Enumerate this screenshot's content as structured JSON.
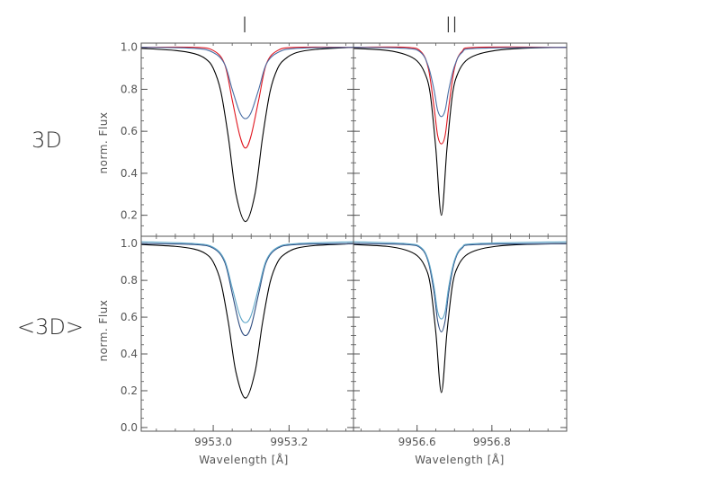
{
  "colors": {
    "black": "#000000",
    "red": "#e0161f",
    "blue": "#4a6fa5",
    "blue_dark": "#2f4d80",
    "blue_light": "#5fa6c8",
    "axis": "#555555"
  },
  "column_titles": [
    "I",
    "II"
  ],
  "row_titles": [
    "3D",
    "<3D>"
  ],
  "ylabel": "norm. Flux",
  "xlabel": "Wavelength [Å]",
  "chart_data": [
    {
      "type": "line",
      "panel": "top-left",
      "xlim": [
        9952.81,
        9953.37
      ],
      "ylim": [
        0.1,
        1.02
      ],
      "yticks": [
        0.2,
        0.4,
        0.6,
        0.8,
        1.0
      ],
      "ytick_labels": [
        "0.2",
        "0.4",
        "0.6",
        "0.8",
        "1.0"
      ],
      "xticks": [],
      "xtick_labels": [],
      "series": [
        {
          "color": "black",
          "center": 9953.085,
          "x": [
            9952.81,
            9952.9,
            9952.95,
            9952.98,
            9953.0,
            9953.02,
            9953.04,
            9953.06,
            9953.085,
            9953.11,
            9953.13,
            9953.15,
            9953.17,
            9953.19,
            9953.22,
            9953.27,
            9953.37
          ],
          "y": [
            0.995,
            0.985,
            0.97,
            0.945,
            0.9,
            0.79,
            0.57,
            0.3,
            0.17,
            0.3,
            0.57,
            0.79,
            0.9,
            0.945,
            0.975,
            0.99,
            1.0
          ]
        },
        {
          "color": "red",
          "center": 9953.085,
          "x": [
            9952.81,
            9952.95,
            9953.0,
            9953.03,
            9953.05,
            9953.07,
            9953.085,
            9953.1,
            9953.12,
            9953.14,
            9953.17,
            9953.22,
            9953.37
          ],
          "y": [
            1.0,
            1.0,
            0.985,
            0.92,
            0.75,
            0.58,
            0.52,
            0.58,
            0.75,
            0.92,
            0.985,
            1.0,
            1.0
          ]
        },
        {
          "color": "blue",
          "center": 9953.085,
          "x": [
            9952.81,
            9952.95,
            9953.0,
            9953.03,
            9953.05,
            9953.07,
            9953.085,
            9953.1,
            9953.12,
            9953.14,
            9953.17,
            9953.22,
            9953.37
          ],
          "y": [
            1.0,
            0.995,
            0.975,
            0.92,
            0.8,
            0.69,
            0.66,
            0.69,
            0.8,
            0.92,
            0.975,
            0.995,
            1.0
          ]
        }
      ]
    },
    {
      "type": "line",
      "panel": "top-right",
      "xlim": [
        9956.43,
        9957.0
      ],
      "ylim": [
        0.1,
        1.02
      ],
      "yticks": [
        0.2,
        0.4,
        0.6,
        0.8,
        1.0
      ],
      "ytick_labels": [],
      "xticks": [],
      "xtick_labels": [],
      "series": [
        {
          "color": "black",
          "center": 9956.665,
          "x": [
            9956.43,
            9956.52,
            9956.57,
            9956.6,
            9956.62,
            9956.635,
            9956.65,
            9956.665,
            9956.68,
            9956.695,
            9956.71,
            9956.73,
            9956.76,
            9956.81,
            9956.88,
            9957.0
          ],
          "y": [
            0.995,
            0.985,
            0.965,
            0.935,
            0.88,
            0.78,
            0.52,
            0.2,
            0.52,
            0.78,
            0.88,
            0.935,
            0.965,
            0.985,
            0.995,
            1.0
          ]
        },
        {
          "color": "red",
          "center": 9956.665,
          "x": [
            9956.43,
            9956.57,
            9956.61,
            9956.63,
            9956.645,
            9956.655,
            9956.665,
            9956.675,
            9956.685,
            9956.7,
            9956.72,
            9956.76,
            9957.0
          ],
          "y": [
            1.0,
            1.0,
            0.98,
            0.9,
            0.72,
            0.58,
            0.54,
            0.58,
            0.72,
            0.9,
            0.98,
            1.0,
            1.0
          ]
        },
        {
          "color": "blue",
          "center": 9956.665,
          "x": [
            9956.43,
            9956.57,
            9956.61,
            9956.63,
            9956.645,
            9956.655,
            9956.665,
            9956.675,
            9956.685,
            9956.7,
            9956.72,
            9956.76,
            9957.0
          ],
          "y": [
            1.0,
            0.995,
            0.975,
            0.91,
            0.8,
            0.7,
            0.67,
            0.7,
            0.8,
            0.91,
            0.975,
            0.995,
            1.0
          ]
        }
      ]
    },
    {
      "type": "line",
      "panel": "bottom-left",
      "xlim": [
        9952.81,
        9953.37
      ],
      "ylim": [
        -0.02,
        1.04
      ],
      "yticks": [
        0.0,
        0.2,
        0.4,
        0.6,
        0.8,
        1.0
      ],
      "ytick_labels": [
        "0.0",
        "0.2",
        "0.4",
        "0.6",
        "0.8",
        "1.0"
      ],
      "xticks": [
        9953.0,
        9953.2
      ],
      "xtick_labels": [
        "9953.0",
        "9953.2"
      ],
      "series": [
        {
          "color": "black",
          "center": 9953.085,
          "x": [
            9952.81,
            9952.9,
            9952.95,
            9952.98,
            9953.0,
            9953.02,
            9953.04,
            9953.06,
            9953.085,
            9953.11,
            9953.13,
            9953.15,
            9953.17,
            9953.19,
            9953.22,
            9953.27,
            9953.37
          ],
          "y": [
            0.995,
            0.985,
            0.97,
            0.945,
            0.9,
            0.79,
            0.57,
            0.3,
            0.16,
            0.3,
            0.57,
            0.79,
            0.9,
            0.945,
            0.975,
            0.99,
            1.0
          ]
        },
        {
          "color": "blue_dark",
          "center": 9953.085,
          "x": [
            9952.81,
            9952.95,
            9953.0,
            9953.03,
            9953.05,
            9953.07,
            9953.085,
            9953.1,
            9953.12,
            9953.14,
            9953.17,
            9953.22,
            9953.37
          ],
          "y": [
            1.0,
            0.995,
            0.975,
            0.9,
            0.73,
            0.55,
            0.5,
            0.55,
            0.73,
            0.9,
            0.975,
            0.995,
            1.0
          ]
        },
        {
          "color": "blue_light",
          "center": 9953.085,
          "x": [
            9952.81,
            9952.95,
            9953.0,
            9953.03,
            9953.05,
            9953.07,
            9953.085,
            9953.1,
            9953.12,
            9953.14,
            9953.17,
            9953.22,
            9953.37
          ],
          "y": [
            1.01,
            1.0,
            0.98,
            0.91,
            0.76,
            0.61,
            0.57,
            0.61,
            0.76,
            0.91,
            0.98,
            1.0,
            1.01
          ]
        }
      ]
    },
    {
      "type": "line",
      "panel": "bottom-right",
      "xlim": [
        9956.43,
        9957.0
      ],
      "ylim": [
        -0.02,
        1.04
      ],
      "yticks": [
        0.0,
        0.2,
        0.4,
        0.6,
        0.8,
        1.0
      ],
      "ytick_labels": [],
      "xticks": [
        9956.6,
        9956.8
      ],
      "xtick_labels": [
        "9956.6",
        "9956.8"
      ],
      "series": [
        {
          "color": "black",
          "center": 9956.665,
          "x": [
            9956.43,
            9956.52,
            9956.57,
            9956.6,
            9956.62,
            9956.635,
            9956.65,
            9956.665,
            9956.68,
            9956.695,
            9956.71,
            9956.73,
            9956.76,
            9956.81,
            9956.88,
            9957.0
          ],
          "y": [
            0.995,
            0.985,
            0.965,
            0.935,
            0.88,
            0.78,
            0.52,
            0.19,
            0.52,
            0.78,
            0.88,
            0.935,
            0.965,
            0.985,
            0.995,
            1.0
          ]
        },
        {
          "color": "blue_dark",
          "center": 9956.665,
          "x": [
            9956.43,
            9956.57,
            9956.61,
            9956.63,
            9956.645,
            9956.655,
            9956.665,
            9956.675,
            9956.685,
            9956.7,
            9956.72,
            9956.76,
            9957.0
          ],
          "y": [
            1.0,
            0.995,
            0.975,
            0.9,
            0.74,
            0.58,
            0.52,
            0.58,
            0.74,
            0.9,
            0.975,
            0.995,
            1.0
          ]
        },
        {
          "color": "blue_light",
          "center": 9956.665,
          "x": [
            9956.43,
            9956.57,
            9956.61,
            9956.63,
            9956.645,
            9956.655,
            9956.665,
            9956.675,
            9956.685,
            9956.7,
            9956.72,
            9956.76,
            9957.0
          ],
          "y": [
            1.01,
            1.0,
            0.98,
            0.91,
            0.77,
            0.63,
            0.59,
            0.63,
            0.77,
            0.91,
            0.98,
            1.0,
            1.01
          ]
        }
      ]
    }
  ]
}
